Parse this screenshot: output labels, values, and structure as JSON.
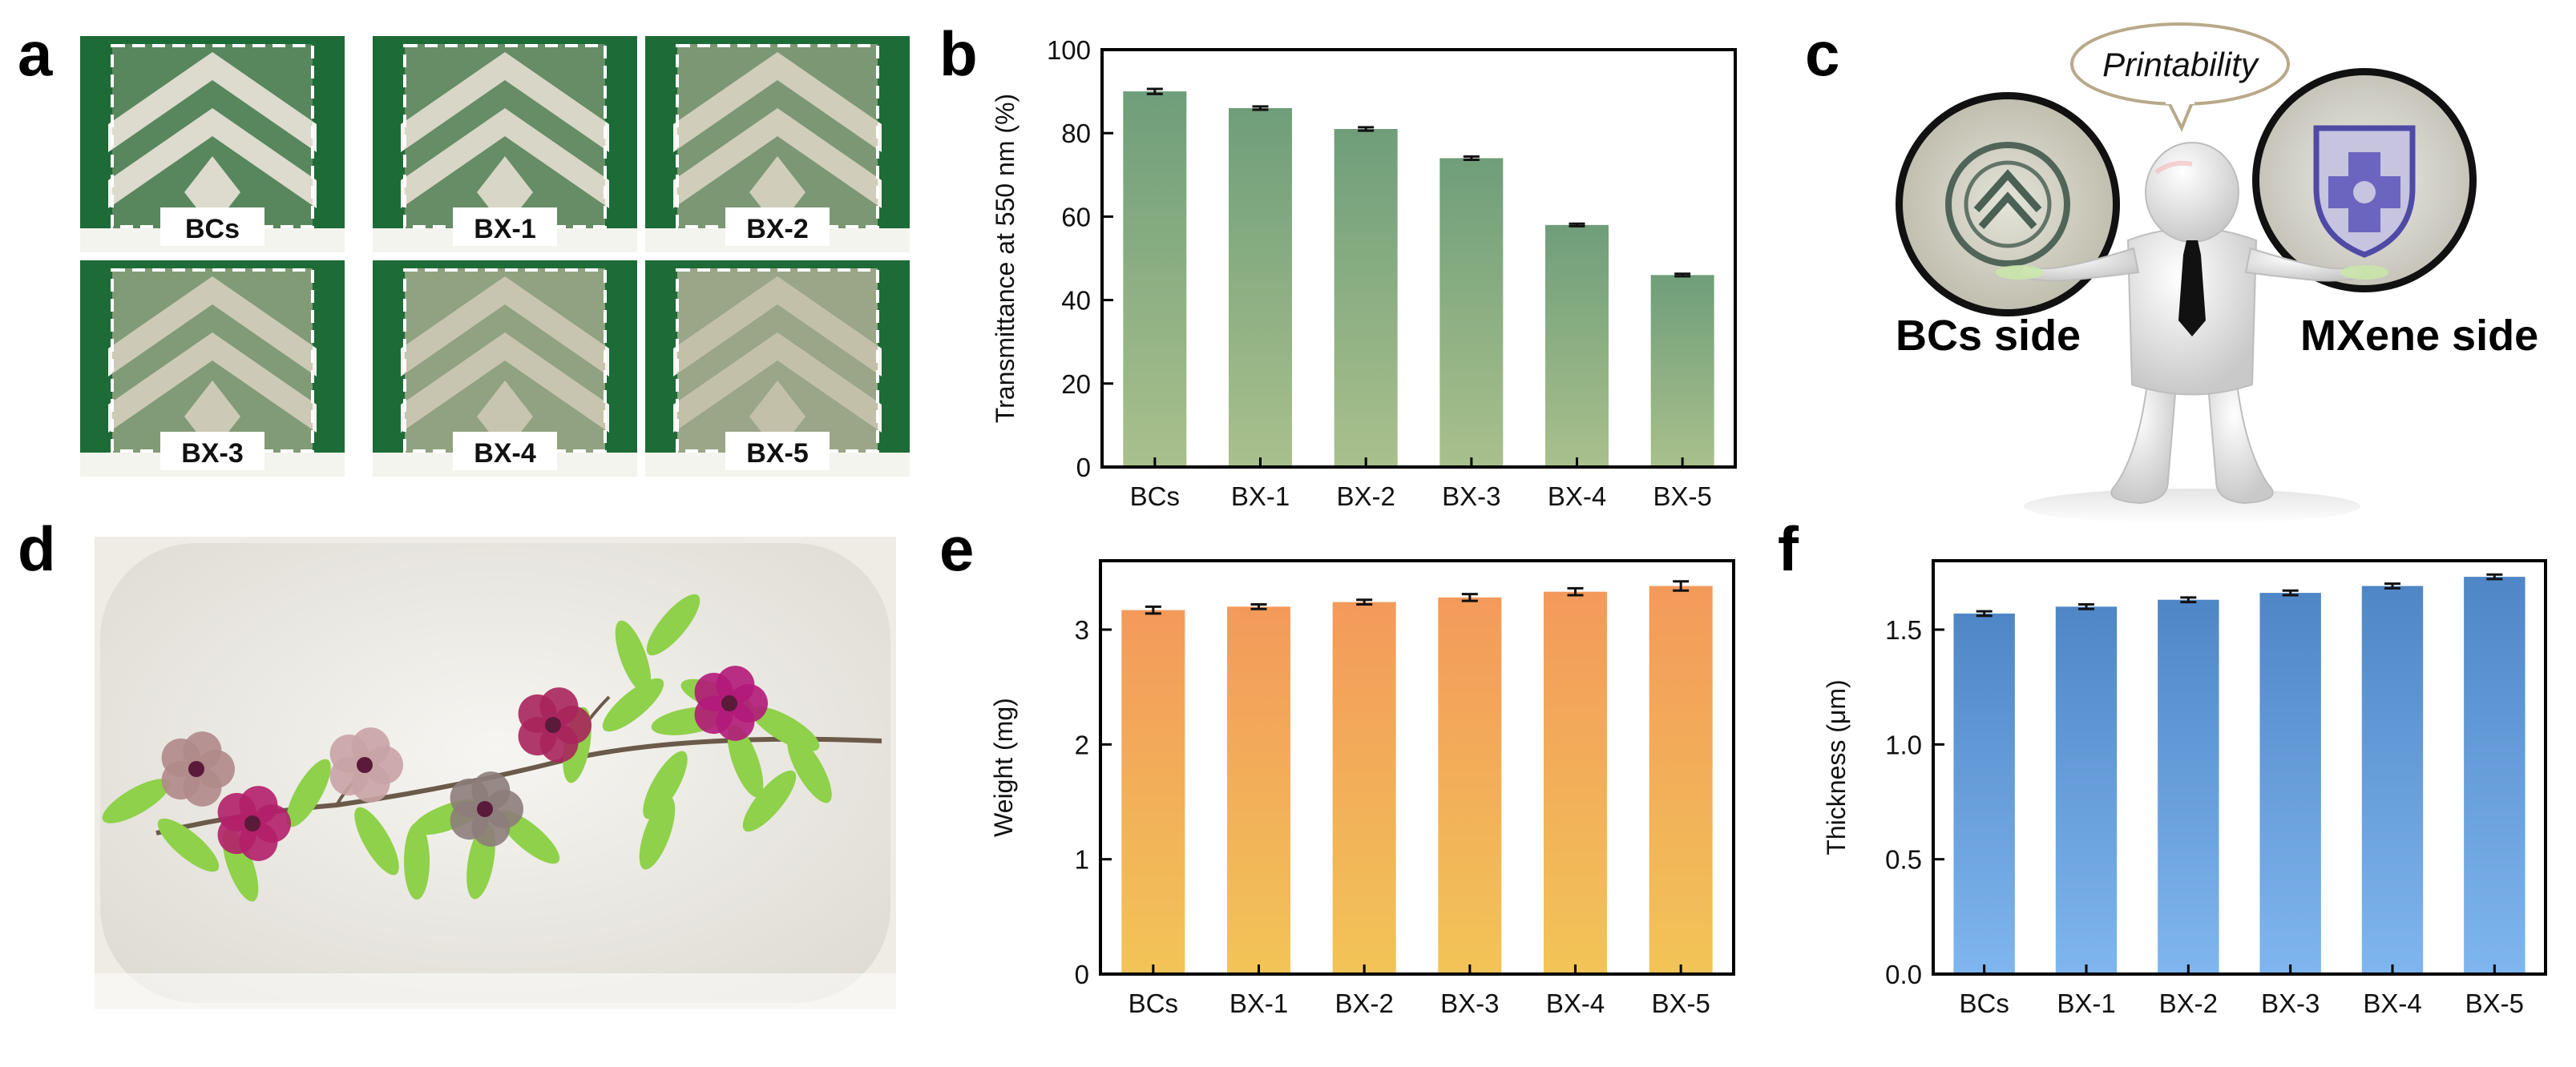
{
  "panels": {
    "a": {
      "letter": "a",
      "tiles": [
        "BCs",
        "BX-1",
        "BX-2",
        "BX-3",
        "BX-4",
        "BX-5"
      ]
    },
    "c": {
      "letter": "c",
      "bubble": "Printability",
      "left_label": "BCs side",
      "right_label": "MXene side"
    },
    "d": {
      "letter": "d"
    },
    "b": {
      "letter": "b"
    },
    "e": {
      "letter": "e"
    },
    "f": {
      "letter": "f"
    }
  },
  "colors": {
    "b_top": "#6f9e7a",
    "b_bottom": "#a9c08c",
    "e_top": "#f39a5b",
    "e_bottom": "#f2c457",
    "f_top": "#4f86c6",
    "f_bottom": "#7fb6ef",
    "green_board": "#1d6b37"
  },
  "chart_data": [
    {
      "panel": "b",
      "type": "bar",
      "categories": [
        "BCs",
        "BX-1",
        "BX-2",
        "BX-3",
        "BX-4",
        "BX-5"
      ],
      "values": [
        90,
        86,
        81,
        74,
        58,
        46
      ],
      "errors": [
        0.6,
        0.4,
        0.4,
        0.4,
        0.3,
        0.3
      ],
      "ylabel": "Transmittance at 550 nm (%)",
      "ylim": [
        0,
        100
      ],
      "yticks": [
        0,
        20,
        40,
        60,
        80,
        100
      ]
    },
    {
      "panel": "e",
      "type": "bar",
      "categories": [
        "BCs",
        "BX-1",
        "BX-2",
        "BX-3",
        "BX-4",
        "BX-5"
      ],
      "values": [
        3.17,
        3.2,
        3.24,
        3.28,
        3.33,
        3.38
      ],
      "errors": [
        0.03,
        0.02,
        0.02,
        0.03,
        0.03,
        0.04
      ],
      "ylabel": "Weight (mg)",
      "ylim": [
        0,
        3.6
      ],
      "yticks": [
        0,
        1,
        2,
        3
      ]
    },
    {
      "panel": "f",
      "type": "bar",
      "categories": [
        "BCs",
        "BX-1",
        "BX-2",
        "BX-3",
        "BX-4",
        "BX-5"
      ],
      "values": [
        1.57,
        1.6,
        1.63,
        1.66,
        1.69,
        1.73
      ],
      "errors": [
        0.01,
        0.01,
        0.01,
        0.01,
        0.01,
        0.01
      ],
      "ylabel": "Thickness (μm)",
      "ylim": [
        0,
        1.8
      ],
      "yticks": [
        0.0,
        0.5,
        1.0,
        1.5
      ],
      "ytick_decimals": 1
    }
  ]
}
